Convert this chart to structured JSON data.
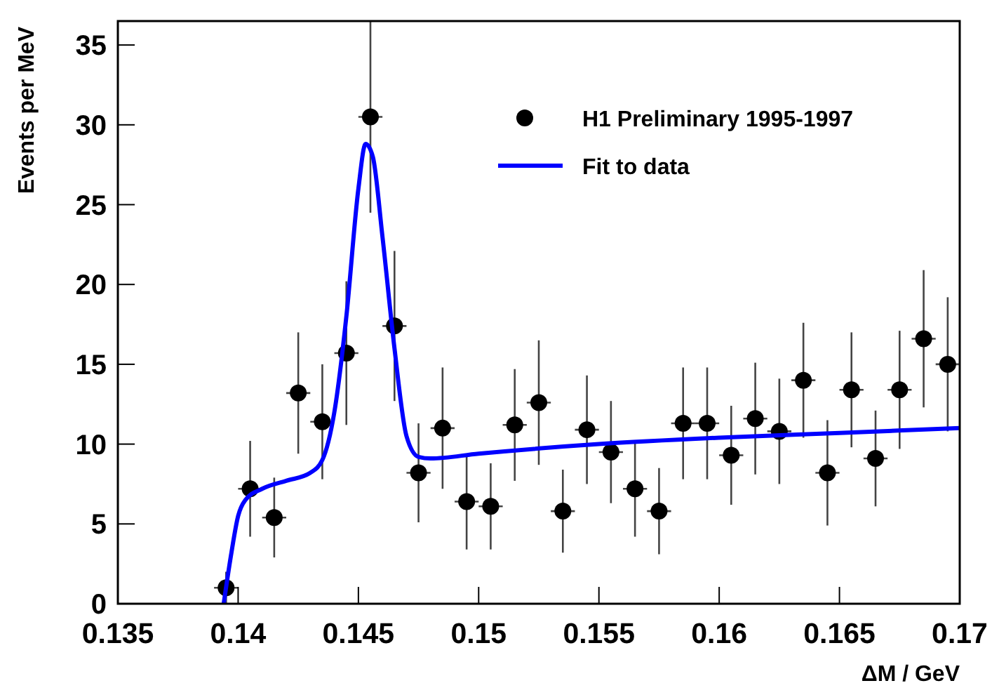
{
  "chart_data": {
    "type": "scatter",
    "xlabel": "ΔM / GeV",
    "ylabel": "Events per MeV",
    "xlim": [
      0.135,
      0.17
    ],
    "ylim": [
      0,
      36.5
    ],
    "xticks": [
      0.135,
      0.14,
      0.145,
      0.15,
      0.155,
      0.16,
      0.165,
      0.17
    ],
    "yticks": [
      0,
      5,
      10,
      15,
      20,
      25,
      30,
      35
    ],
    "grid": false,
    "legend": "top right",
    "marker": "circle",
    "x": [
      0.1395,
      0.1405,
      0.1415,
      0.1425,
      0.1435,
      0.1445,
      0.1455,
      0.1465,
      0.1475,
      0.1485,
      0.1495,
      0.1505,
      0.1515,
      0.1525,
      0.1535,
      0.1545,
      0.1555,
      0.1565,
      0.1575,
      0.1585,
      0.1595,
      0.1605,
      0.1615,
      0.1625,
      0.1635,
      0.1645,
      0.1655,
      0.1665,
      0.1675,
      0.1685,
      0.1695
    ],
    "series": [
      {
        "name": "H1 Preliminary 1995-1997",
        "type": "scatter",
        "color": "#000000",
        "values": [
          1.0,
          7.2,
          5.4,
          13.2,
          11.4,
          15.7,
          30.5,
          17.4,
          8.2,
          11.0,
          6.4,
          6.1,
          11.2,
          12.6,
          5.8,
          10.9,
          9.5,
          7.2,
          5.8,
          11.3,
          11.3,
          9.3,
          11.6,
          10.8,
          14.0,
          8.2,
          13.4,
          9.1,
          13.4,
          16.6,
          15.0
        ],
        "errors": [
          1,
          3,
          2.5,
          3.8,
          3.6,
          4.5,
          6,
          4.7,
          3.1,
          3.8,
          3,
          2.7,
          3.5,
          3.9,
          2.6,
          3.4,
          3.2,
          3,
          2.7,
          3.5,
          3.5,
          3.1,
          3.5,
          3.3,
          3.6,
          3.3,
          3.6,
          3.0,
          3.7,
          4.3,
          4.2
        ],
        "xerrors": [
          0.0005,
          0.0005,
          0.0005,
          0.0005,
          0.0005,
          0.0005,
          0.0005,
          0.0005,
          0.0005,
          0.0005,
          0.0005,
          0.0005,
          0.0005,
          0.0005,
          0.0005,
          0.0005,
          0.0005,
          0.0005,
          0.0005,
          0.0005,
          0.0005,
          0.0005,
          0.0005,
          0.0005,
          0.0005,
          0.0005,
          0.0005,
          0.0005,
          0.0005,
          0.0005,
          0.0005
        ]
      },
      {
        "name": "Fit to data",
        "type": "line",
        "color": "#0000ff",
        "marker": "none",
        "line_style": "solid",
        "x": [
          0.1394,
          0.1397,
          0.14,
          0.1403,
          0.141,
          0.142,
          0.143,
          0.1435,
          0.144,
          0.1445,
          0.145,
          0.1453,
          0.1456,
          0.146,
          0.1465,
          0.147,
          0.1475,
          0.148,
          0.15,
          0.155,
          0.16,
          0.165,
          0.17
        ],
        "values": [
          0,
          3,
          5.5,
          6.5,
          7.2,
          7.7,
          8.2,
          9,
          12,
          18,
          26,
          28.8,
          28,
          23,
          16,
          10.5,
          9.2,
          9.1,
          9.4,
          10.0,
          10.4,
          10.7,
          11.0
        ]
      }
    ]
  }
}
